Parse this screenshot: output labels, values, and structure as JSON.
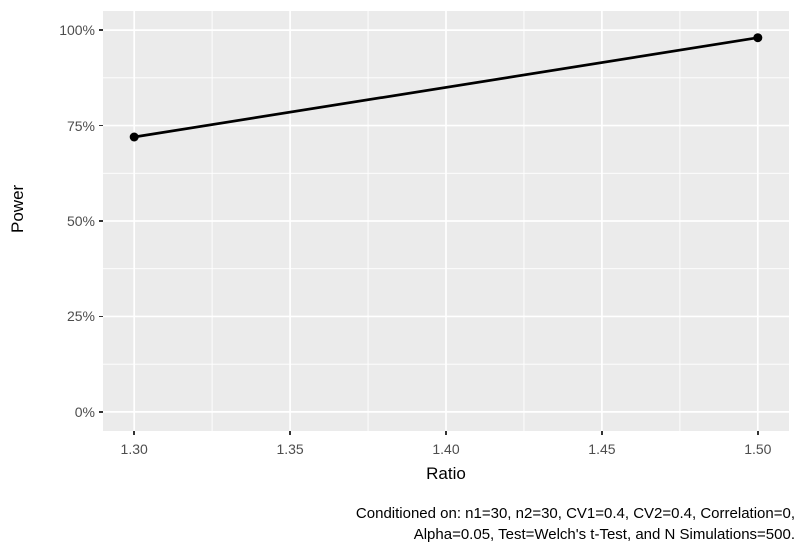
{
  "chart_data": {
    "type": "line",
    "title": "",
    "xlabel": "Ratio",
    "ylabel": "Power",
    "series": [
      {
        "name": "Power",
        "x": [
          1.3,
          1.5
        ],
        "y_percent": [
          72,
          98
        ]
      }
    ],
    "x_ticks": [
      1.3,
      1.35,
      1.4,
      1.45,
      1.5
    ],
    "x_tick_labels": [
      "1.30",
      "1.35",
      "1.40",
      "1.45",
      "1.50"
    ],
    "y_ticks": [
      0,
      25,
      50,
      75,
      100
    ],
    "y_tick_labels": [
      "0%",
      "25%",
      "50%",
      "75%",
      "100%"
    ],
    "x_range": [
      1.29,
      1.51
    ],
    "y_range_percent": [
      -5,
      105
    ],
    "grid": true,
    "grid_minor": true,
    "legend": "none",
    "caption_line1": "Conditioned on: n1=30, n2=30, CV1=0.4, CV2=0.4, Correlation=0,",
    "caption_line2": "Alpha=0.05, Test=Welch's t-Test, and N Simulations=500."
  },
  "colors": {
    "panel_bg": "#EBEBEB",
    "grid_major": "#FFFFFF",
    "grid_minor": "#FFFFFF",
    "tick_text": "#4D4D4D",
    "tick_mark": "#333333",
    "axis_title": "#000000",
    "caption_text": "#000000",
    "line": "#000000",
    "point": "#000000"
  }
}
